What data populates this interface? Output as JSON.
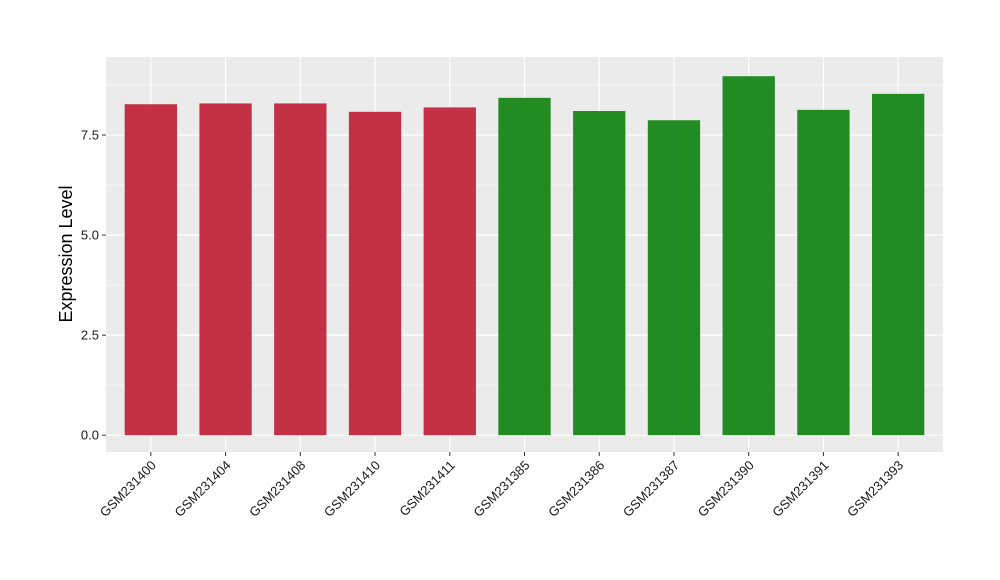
{
  "chart_data": {
    "type": "bar",
    "title": "",
    "xlabel": "",
    "ylabel": "Expression Level",
    "ylim": [
      -0.42,
      9.45
    ],
    "yticks": [
      0.0,
      2.5,
      5.0,
      7.5
    ],
    "ytick_labels": [
      "0.0",
      "2.5",
      "5.0",
      "7.5"
    ],
    "grid": true,
    "legend": "none",
    "panel_background": "#ebebeb",
    "categories": [
      "GSM231400",
      "GSM231404",
      "GSM231408",
      "GSM231410",
      "GSM231411",
      "GSM231385",
      "GSM231386",
      "GSM231387",
      "GSM231390",
      "GSM231391",
      "GSM231393"
    ],
    "values": [
      8.27,
      8.29,
      8.29,
      8.08,
      8.19,
      8.43,
      8.1,
      7.87,
      8.97,
      8.13,
      8.53
    ],
    "colors": [
      "#c43045",
      "#c43045",
      "#c43045",
      "#c43045",
      "#c43045",
      "#228b22",
      "#228b22",
      "#228b22",
      "#228b22",
      "#228b22",
      "#228b22"
    ]
  }
}
